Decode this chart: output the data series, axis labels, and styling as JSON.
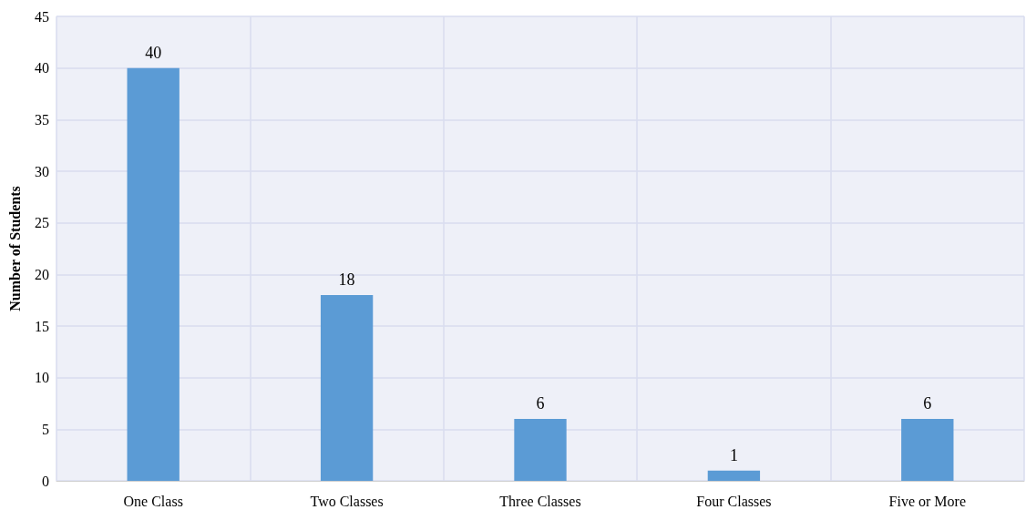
{
  "chart_data": {
    "type": "bar",
    "ylabel": "Number of Students",
    "categories": [
      "One Class",
      "Two Classes",
      "Three Classes",
      "Four Classes",
      "Five or More"
    ],
    "values": [
      40,
      18,
      6,
      1,
      6
    ],
    "color": "#5b9bd5",
    "ylim": [
      0,
      45
    ],
    "yticks": [
      0,
      5,
      10,
      15,
      20,
      25,
      30,
      35,
      40,
      45
    ],
    "grid": true,
    "data_labels": true
  }
}
